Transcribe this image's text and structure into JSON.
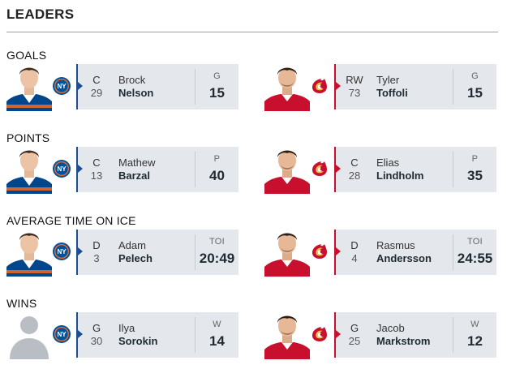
{
  "header": {
    "title": "LEADERS"
  },
  "colors": {
    "home_accent": "#1d4e8f",
    "away_accent": "#c8102e",
    "panel_bg": "#e4e8ec"
  },
  "teams": {
    "home": {
      "logo_icon": "islanders-logo-icon",
      "logo_text": "NY"
    },
    "away": {
      "logo_icon": "flames-logo-icon",
      "logo_text": "C"
    }
  },
  "sections": [
    {
      "title": "GOALS",
      "home": {
        "position": "C",
        "number": "29",
        "first_name": "Brock",
        "last_name": "Nelson",
        "stat_label": "G",
        "stat_value": "15"
      },
      "away": {
        "position": "RW",
        "number": "73",
        "first_name": "Tyler",
        "last_name": "Toffoli",
        "stat_label": "G",
        "stat_value": "15"
      }
    },
    {
      "title": "POINTS",
      "home": {
        "position": "C",
        "number": "13",
        "first_name": "Mathew",
        "last_name": "Barzal",
        "stat_label": "P",
        "stat_value": "40"
      },
      "away": {
        "position": "C",
        "number": "28",
        "first_name": "Elias",
        "last_name": "Lindholm",
        "stat_label": "P",
        "stat_value": "35"
      }
    },
    {
      "title": "AVERAGE TIME ON ICE",
      "home": {
        "position": "D",
        "number": "3",
        "first_name": "Adam",
        "last_name": "Pelech",
        "stat_label": "TOI",
        "stat_value": "20:49"
      },
      "away": {
        "position": "D",
        "number": "4",
        "first_name": "Rasmus",
        "last_name": "Andersson",
        "stat_label": "TOI",
        "stat_value": "24:55"
      }
    },
    {
      "title": "WINS",
      "home": {
        "position": "G",
        "number": "30",
        "first_name": "Ilya",
        "last_name": "Sorokin",
        "stat_label": "W",
        "stat_value": "14"
      },
      "away": {
        "position": "G",
        "number": "25",
        "first_name": "Jacob",
        "last_name": "Markstrom",
        "stat_label": "W",
        "stat_value": "12"
      }
    }
  ]
}
